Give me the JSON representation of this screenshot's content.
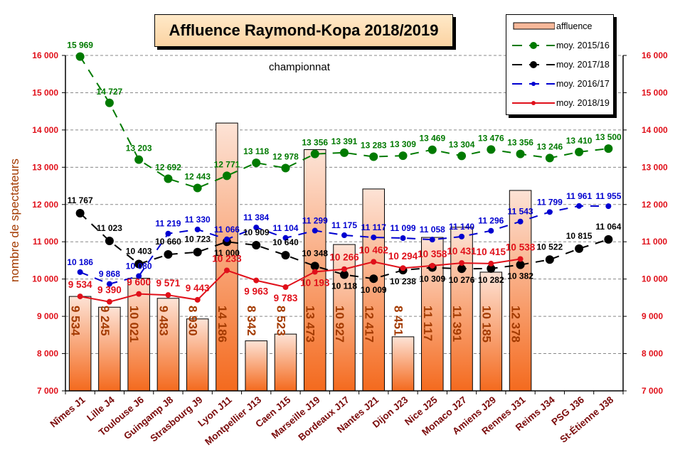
{
  "chart_data": {
    "type": "bar+line",
    "title": "Affluence Raymond-Kopa 2018/2019",
    "subtitle": "championnat",
    "ylabel": "nombre de spectateurs",
    "ylim": [
      7000,
      16000
    ],
    "yticks": [
      7000,
      8000,
      9000,
      10000,
      11000,
      12000,
      13000,
      14000,
      15000,
      16000
    ],
    "ytick_labels": [
      "7 000",
      "8 000",
      "9 000",
      "10 000",
      "11 000",
      "12 000",
      "13 000",
      "14 000",
      "15 000",
      "16 000"
    ],
    "grid": "horizontal dashed",
    "legend_position": "top-right",
    "categories": [
      "Nîmes J1",
      "Lille J4",
      "Toulouse J6",
      "Guingamp J8",
      "Strasbourg J9",
      "Lyon J11",
      "Montpellier J13",
      "Caen J15",
      "Marseille J19",
      "Bordeaux J17",
      "Nantes J21",
      "Dijon J23",
      "Nice J25",
      "Monaco J27",
      "Amiens J29",
      "Rennes J31",
      "Reims J34",
      "PSG J36",
      "St-Étienne J38"
    ],
    "series": [
      {
        "name": "affluence",
        "kind": "bar",
        "color": "#f4793a",
        "values": [
          9534,
          9245,
          10021,
          9483,
          8930,
          14186,
          8342,
          8523,
          13473,
          10927,
          12417,
          8451,
          11117,
          11391,
          10185,
          12378,
          null,
          null,
          null
        ],
        "labels": [
          "9 534",
          "9 245",
          "10 021",
          "9 483",
          "8 930",
          "14 186",
          "8 342",
          "8 523",
          "13 473",
          "10 927",
          "12 417",
          "8 451",
          "11 117",
          "11 391",
          "10 185",
          "12 378",
          "",
          "",
          ""
        ]
      },
      {
        "name": "moy. 2015/16",
        "kind": "line",
        "color": "#007a00",
        "dash": "dashed",
        "marker": "large",
        "values": [
          15969,
          14727,
          13203,
          12692,
          12443,
          12771,
          13118,
          12978,
          13356,
          13391,
          13283,
          13309,
          13469,
          13304,
          13476,
          13356,
          13246,
          13410,
          13500
        ],
        "labels": [
          "15 969",
          "14 727",
          "13 203",
          "12 692",
          "12 443",
          "12 771",
          "13 118",
          "12 978",
          "13 356",
          "13 391",
          "13 283",
          "13 309",
          "13 469",
          "13 304",
          "13 476",
          "13 356",
          "13 246",
          "13 410",
          "13 500"
        ]
      },
      {
        "name": "moy. 2017/18",
        "kind": "line",
        "color": "#000000",
        "dash": "dashed",
        "marker": "large",
        "values": [
          11767,
          11023,
          10403,
          10660,
          10723,
          11000,
          10909,
          10640,
          10348,
          10118,
          10009,
          10238,
          10309,
          10276,
          10282,
          10382,
          10522,
          10815,
          11064
        ],
        "labels": [
          "11 767",
          "11 023",
          "10 403",
          "10 660",
          "10 723",
          "11 000",
          "10 909",
          "10 640",
          "10 348",
          "10 118",
          "10 009",
          "10 238",
          "10 309",
          "10 276",
          "10 282",
          "10 382",
          "10 522",
          "10 815",
          "11 064"
        ]
      },
      {
        "name": "moy. 2016/17",
        "kind": "line",
        "color": "#0000d0",
        "dash": "dashed",
        "marker": "small",
        "values": [
          10186,
          9868,
          10080,
          11219,
          11330,
          11066,
          11384,
          11104,
          11299,
          11175,
          11117,
          11099,
          11058,
          11140,
          11296,
          11543,
          11799,
          11961,
          11955
        ],
        "labels": [
          "10 186",
          "9 868",
          "10 080",
          "11 219",
          "11 330",
          "11 066",
          "11 384",
          "11 104",
          "11 299",
          "11 175",
          "11 117",
          "11 099",
          "11 058",
          "11 140",
          "11 296",
          "11 543",
          "11 799",
          "11 961",
          "11 955"
        ]
      },
      {
        "name": "moy. 2018/19",
        "kind": "line",
        "color": "#e0101a",
        "dash": "solid",
        "marker": "small",
        "values": [
          9534,
          9390,
          9600,
          9571,
          9443,
          10233,
          9963,
          9783,
          10193,
          10266,
          10462,
          10294,
          10358,
          10431,
          10415,
          10538,
          null,
          null,
          null
        ],
        "labels": [
          "9 534",
          "9 390",
          "9 600",
          "9 571",
          "9 443",
          "10 233",
          "9 963",
          "9 783",
          "10 193",
          "10 266",
          "10 462",
          "10 294",
          "10 358",
          "10 431",
          "10 415",
          "10 538",
          "",
          "",
          ""
        ]
      }
    ]
  }
}
